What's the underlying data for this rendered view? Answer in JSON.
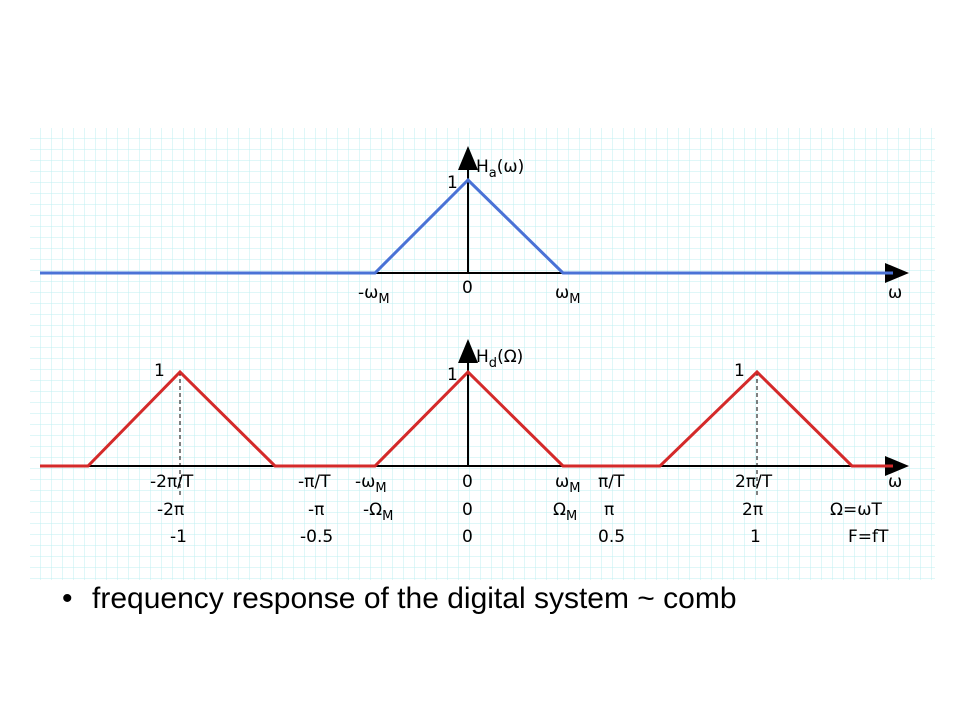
{
  "top_plot": {
    "ylabel": {
      "base": "H",
      "sub": "a",
      "tail": "(ω)"
    },
    "peak": "1",
    "ticks": [
      {
        "base": "-ω",
        "sub": "M"
      },
      {
        "base": "0"
      },
      {
        "base": "ω",
        "sub": "M"
      },
      {
        "base": "ω"
      }
    ]
  },
  "bottom_plot": {
    "ylabel": {
      "base": "H",
      "sub": "d",
      "tail": "(Ω)"
    },
    "peaks": [
      "1",
      "1",
      "1"
    ],
    "rows": [
      [
        {
          "base": "-2π/T"
        },
        {
          "base": "-π/T"
        },
        {
          "base": "-ω",
          "sub": "M"
        },
        {
          "base": "0"
        },
        {
          "base": "ω",
          "sub": "M"
        },
        {
          "base": "π/T"
        },
        {
          "base": "2π/T"
        },
        {
          "base": "ω"
        }
      ],
      [
        {
          "base": "-2π"
        },
        {
          "base": "-π"
        },
        {
          "base": "-Ω",
          "sub": "M"
        },
        {
          "base": "0"
        },
        {
          "base": "Ω",
          "sub": "M"
        },
        {
          "base": "π"
        },
        {
          "base": "2π"
        },
        {
          "base": "Ω=ωT"
        }
      ],
      [
        {
          "base": "-1"
        },
        {
          "base": "-0.5"
        },
        {
          "base": "0"
        },
        {
          "base": "0.5"
        },
        {
          "base": "1"
        },
        {
          "base": "F=fT"
        }
      ]
    ]
  },
  "caption": "frequency response of the digital system ~ comb"
}
